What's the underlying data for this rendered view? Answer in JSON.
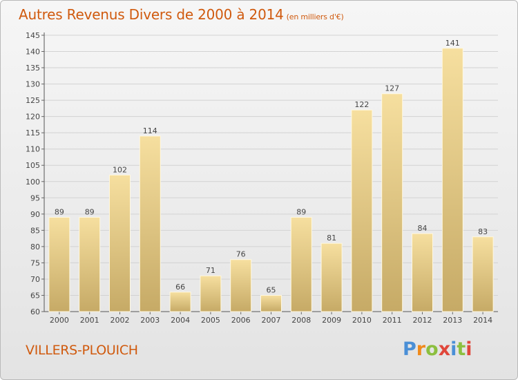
{
  "header": {
    "title": "Autres Revenus Divers de 2000 à 2014",
    "unit": "(en milliers d'€)"
  },
  "footer": {
    "place": "VILLERS-PLOUICH",
    "logo_letters": [
      "P",
      "r",
      "o",
      "x",
      "i",
      "t",
      "i"
    ],
    "logo_colors": [
      "#4a8fd6",
      "#f08a1c",
      "#8cbf3f",
      "#e0463a",
      "#4a8fd6",
      "#8cbf3f",
      "#e0463a"
    ]
  },
  "chart_data": {
    "type": "bar",
    "title": "Autres Revenus Divers de 2000 à 2014",
    "xlabel": "",
    "ylabel": "",
    "categories": [
      "2000",
      "2001",
      "2002",
      "2003",
      "2004",
      "2005",
      "2006",
      "2007",
      "2008",
      "2009",
      "2010",
      "2011",
      "2012",
      "2013",
      "2014"
    ],
    "values": [
      89,
      89,
      102,
      114,
      66,
      71,
      76,
      65,
      89,
      81,
      122,
      127,
      84,
      141,
      83
    ],
    "ylim": [
      60,
      145
    ],
    "yticks": [
      60,
      65,
      70,
      75,
      80,
      85,
      90,
      95,
      100,
      105,
      110,
      115,
      120,
      125,
      130,
      135,
      140,
      145
    ],
    "grid": true,
    "bar_color_light": "#f6df9f",
    "bar_color_dark": "#c6aa66"
  }
}
